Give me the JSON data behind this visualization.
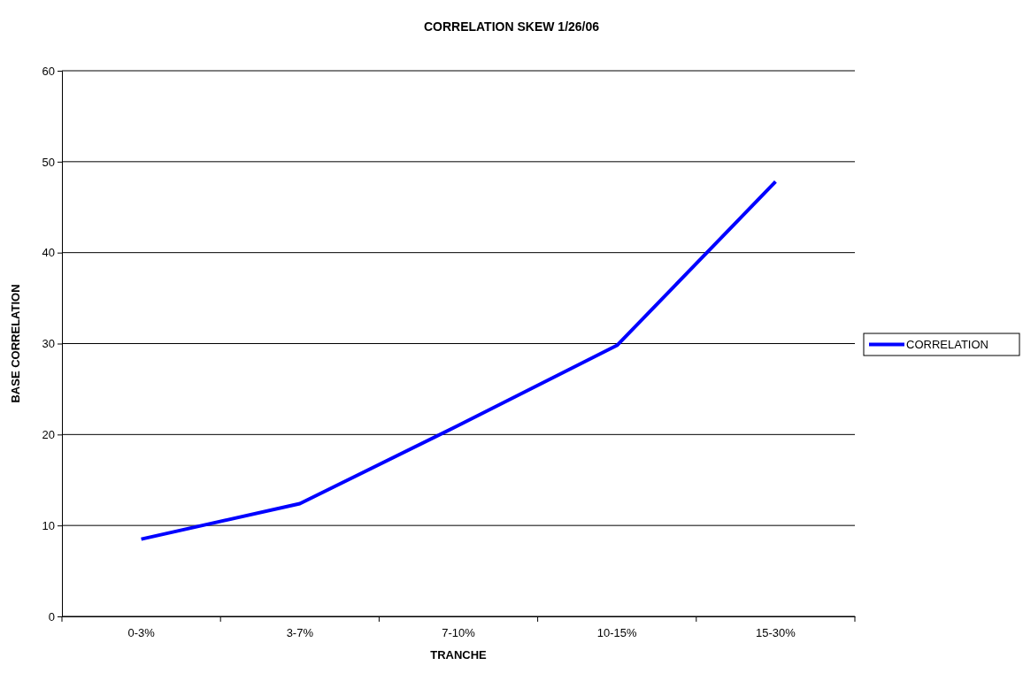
{
  "chart_data": {
    "type": "line",
    "title": "CORRELATION SKEW 1/26/06",
    "xlabel": "TRANCHE",
    "ylabel": "BASE CORRELATION",
    "categories": [
      "0-3%",
      "3-7%",
      "7-10%",
      "10-15%",
      "15-30%"
    ],
    "series": [
      {
        "name": "CORRELATION",
        "color": "#0000ff",
        "values": [
          8.5,
          12.4,
          21,
          29.8,
          47.8
        ]
      }
    ],
    "ylim": [
      0,
      60
    ],
    "yticks": [
      0,
      10,
      20,
      30,
      40,
      50,
      60
    ],
    "grid": "y",
    "legend": "right",
    "marker": "none",
    "line_style": "solid"
  }
}
